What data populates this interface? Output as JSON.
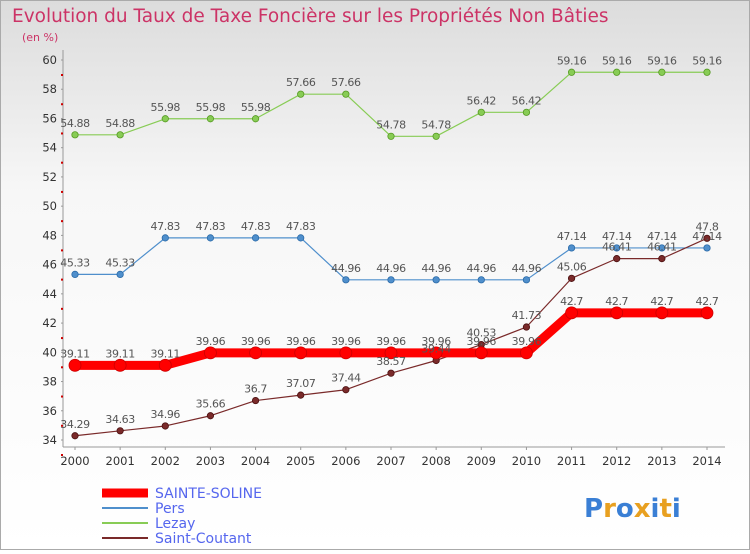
{
  "chart_data": {
    "type": "line",
    "title": "Evolution du Taux de Taxe Foncière sur les Propriétés Non Bâties",
    "subtitle": "(en %)",
    "xlabel": "",
    "ylabel": "",
    "ylim": [
      34,
      60
    ],
    "yticks": [
      34,
      36,
      38,
      40,
      42,
      44,
      46,
      48,
      50,
      52,
      54,
      56,
      58,
      60
    ],
    "categories": [
      "2000",
      "2001",
      "2002",
      "2003",
      "2004",
      "2005",
      "2006",
      "2007",
      "2008",
      "2009",
      "2010",
      "2011",
      "2012",
      "2013",
      "2014"
    ],
    "series": [
      {
        "name": "SAINTE-SOLINE",
        "color": "#ff0000",
        "values": [
          39.11,
          39.11,
          39.11,
          39.96,
          39.96,
          39.96,
          39.96,
          39.96,
          39.96,
          39.96,
          39.96,
          42.7,
          42.7,
          42.7,
          42.7
        ],
        "labels": [
          "39.11",
          "39.11",
          "39.11",
          "39.96",
          "39.96",
          "39.96",
          "39.96",
          "39.96",
          "39.96",
          "39.96",
          "39.96",
          "42.7",
          "42.7",
          "42.7",
          "42.7"
        ]
      },
      {
        "name": "Pers",
        "color": "#4f8fcc",
        "values": [
          45.33,
          45.33,
          47.83,
          47.83,
          47.83,
          47.83,
          44.96,
          44.96,
          44.96,
          44.96,
          44.96,
          47.14,
          47.14,
          47.14,
          47.14
        ],
        "labels": [
          "45.33",
          "45.33",
          "47.83",
          "47.83",
          "47.83",
          "47.83",
          "44.96",
          "44.96",
          "44.96",
          "44.96",
          "44.96",
          "47.14",
          "47.14",
          "47.14",
          "47.14"
        ]
      },
      {
        "name": "Lezay",
        "color": "#88cc55",
        "values": [
          54.88,
          54.88,
          55.98,
          55.98,
          55.98,
          57.66,
          57.66,
          54.78,
          54.78,
          56.42,
          56.42,
          59.16,
          59.16,
          59.16,
          59.16
        ],
        "labels": [
          "54.88",
          "54.88",
          "55.98",
          "55.98",
          "55.98",
          "57.66",
          "57.66",
          "54.78",
          "54.78",
          "56.42",
          "56.42",
          "59.16",
          "59.16",
          "59.16",
          "59.16"
        ]
      },
      {
        "name": "Saint-Coutant",
        "color": "#7a2a2a",
        "values": [
          34.29,
          34.63,
          34.96,
          35.66,
          36.7,
          37.07,
          37.44,
          38.57,
          39.44,
          40.53,
          41.73,
          45.06,
          46.41,
          46.41,
          47.8
        ],
        "labels": [
          "34.29",
          "34.63",
          "34.96",
          "35.66",
          "36.7",
          "37.07",
          "37.44",
          "38.57",
          "39.44",
          "40.53",
          "41.73",
          "45.06",
          "46.41",
          "46.41",
          "47.8"
        ]
      }
    ],
    "legend": [
      "SAINTE-SOLINE",
      "Pers",
      "Lezay",
      "Saint-Coutant"
    ],
    "legend_position": "bottom-left",
    "grid": false
  },
  "logo": {
    "text": "Proxiti"
  },
  "colors": {
    "title": "#cc3366",
    "axis": "#999999",
    "tick_marks": "#cc0000",
    "legend_text": "#5566ee"
  }
}
